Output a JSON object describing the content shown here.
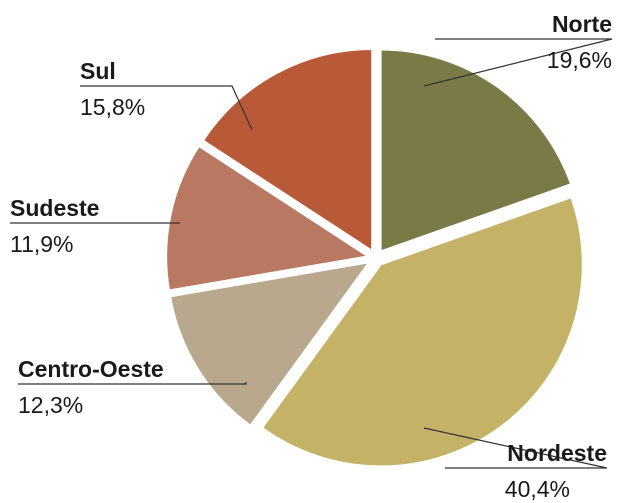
{
  "chart_data": {
    "type": "pie",
    "categories": [
      "Norte",
      "Nordeste",
      "Centro-Oeste",
      "Sudeste",
      "Sul"
    ],
    "values": [
      19.6,
      40.4,
      12.3,
      11.9,
      15.8
    ],
    "value_labels": [
      "19,6%",
      "40,4%",
      "12,3%",
      "11,9%",
      "15,8%"
    ],
    "colors": [
      "#7a7a46",
      "#c4b366",
      "#b9a78e",
      "#b87862",
      "#b85a38"
    ]
  }
}
